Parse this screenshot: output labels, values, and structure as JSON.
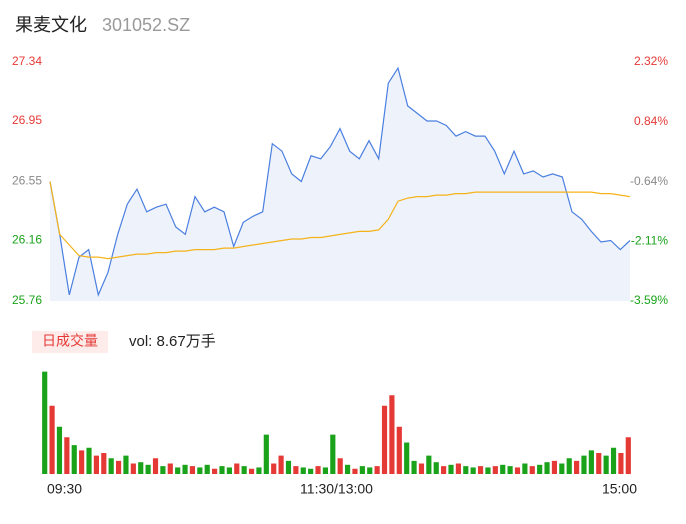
{
  "header": {
    "title": "果麦文化",
    "code": "301052.SZ"
  },
  "chart_data": [
    {
      "type": "line",
      "x": [
        0,
        4,
        8,
        12,
        16,
        20,
        24,
        28,
        32,
        36,
        40,
        44,
        48,
        52,
        56,
        60,
        64,
        68,
        72,
        76,
        80,
        84,
        88,
        92,
        96,
        100,
        104,
        108,
        112,
        116,
        120,
        124,
        128,
        132,
        136,
        140,
        144,
        148,
        152,
        156,
        160,
        164,
        168,
        172,
        176,
        180,
        184,
        188,
        192,
        196,
        200,
        204,
        208,
        212,
        216,
        220,
        224,
        228,
        232,
        236,
        240
      ],
      "xlim": [
        0,
        240
      ],
      "series": [
        {
          "name": "price",
          "color": "#4a7fe0",
          "values": [
            26.55,
            26.2,
            25.8,
            26.05,
            26.1,
            25.8,
            25.95,
            26.2,
            26.4,
            26.5,
            26.35,
            26.38,
            26.4,
            26.25,
            26.2,
            26.45,
            26.35,
            26.38,
            26.35,
            26.12,
            26.28,
            26.32,
            26.35,
            26.8,
            26.75,
            26.6,
            26.55,
            26.72,
            26.7,
            26.78,
            26.9,
            26.75,
            26.7,
            26.82,
            26.7,
            27.2,
            27.3,
            27.05,
            27.0,
            26.95,
            26.95,
            26.92,
            26.85,
            26.88,
            26.85,
            26.85,
            26.75,
            26.6,
            26.75,
            26.6,
            26.62,
            26.58,
            26.6,
            26.58,
            26.35,
            26.3,
            26.22,
            26.15,
            26.16,
            26.1,
            26.16
          ]
        },
        {
          "name": "average",
          "color": "#f5b31a",
          "values": [
            26.55,
            26.2,
            26.13,
            26.06,
            26.05,
            26.05,
            26.04,
            26.05,
            26.06,
            26.07,
            26.07,
            26.08,
            26.08,
            26.09,
            26.09,
            26.1,
            26.1,
            26.1,
            26.11,
            26.11,
            26.12,
            26.13,
            26.14,
            26.15,
            26.16,
            26.17,
            26.17,
            26.18,
            26.18,
            26.19,
            26.2,
            26.21,
            26.22,
            26.22,
            26.23,
            26.3,
            26.42,
            26.44,
            26.45,
            26.45,
            26.46,
            26.46,
            26.47,
            26.47,
            26.48,
            26.48,
            26.48,
            26.48,
            26.48,
            26.48,
            26.48,
            26.48,
            26.48,
            26.48,
            26.48,
            26.48,
            26.48,
            26.47,
            26.47,
            26.46,
            26.45
          ]
        }
      ],
      "ylim": [
        25.76,
        27.34
      ],
      "yticks": [
        25.76,
        26.16,
        26.55,
        26.95,
        27.34
      ],
      "ytick_colors": [
        "#1aa31a",
        "#1aa31a",
        "#888888",
        "#e53935",
        "#e53935"
      ],
      "y2lim": [
        -3.59,
        2.32
      ],
      "y2ticks": [
        {
          "value": -3.59,
          "label": "-3.59%"
        },
        {
          "value": -2.11,
          "label": "-2.11%"
        },
        {
          "value": -0.64,
          "label": "-0.64%"
        },
        {
          "value": 0.84,
          "label": "0.84%"
        },
        {
          "value": 2.32,
          "label": "2.32%"
        }
      ],
      "fill": "#eef2fb"
    },
    {
      "type": "bar",
      "title": "日成交量",
      "subtitle": "vol: 8.67万手",
      "values": [
        3900,
        2600,
        1800,
        1400,
        1100,
        900,
        1000,
        700,
        800,
        600,
        500,
        700,
        400,
        450,
        350,
        600,
        300,
        400,
        250,
        350,
        300,
        250,
        350,
        200,
        300,
        250,
        400,
        300,
        200,
        250,
        1500,
        400,
        700,
        500,
        300,
        250,
        200,
        300,
        250,
        1500,
        600,
        350,
        200,
        300,
        250,
        300,
        2600,
        3000,
        1800,
        1200,
        500,
        400,
        700,
        450,
        300,
        350,
        400,
        300,
        250,
        300,
        250,
        300,
        350,
        300,
        250,
        400,
        300,
        350,
        450,
        500,
        400,
        600,
        500,
        700,
        900,
        800,
        700,
        1000,
        800,
        1400
      ],
      "colors": [
        "#1aa31a",
        "#e53935",
        "#1aa31a",
        "#e53935",
        "#1aa31a",
        "#e53935",
        "#1aa31a",
        "#e53935",
        "#e53935",
        "#1aa31a",
        "#e53935",
        "#1aa31a",
        "#e53935",
        "#1aa31a",
        "#1aa31a",
        "#e53935",
        "#1aa31a",
        "#e53935",
        "#1aa31a",
        "#1aa31a",
        "#e53935",
        "#1aa31a",
        "#1aa31a",
        "#e53935",
        "#1aa31a",
        "#1aa31a",
        "#e53935",
        "#1aa31a",
        "#e53935",
        "#1aa31a",
        "#1aa31a",
        "#e53935",
        "#e53935",
        "#1aa31a",
        "#e53935",
        "#1aa31a",
        "#1aa31a",
        "#e53935",
        "#1aa31a",
        "#1aa31a",
        "#e53935",
        "#1aa31a",
        "#e53935",
        "#1aa31a",
        "#1aa31a",
        "#e53935",
        "#e53935",
        "#e53935",
        "#e53935",
        "#1aa31a",
        "#1aa31a",
        "#e53935",
        "#1aa31a",
        "#1aa31a",
        "#e53935",
        "#1aa31a",
        "#e53935",
        "#1aa31a",
        "#1aa31a",
        "#e53935",
        "#1aa31a",
        "#e53935",
        "#1aa31a",
        "#1aa31a",
        "#e53935",
        "#1aa31a",
        "#e53935",
        "#1aa31a",
        "#1aa31a",
        "#e53935",
        "#1aa31a",
        "#1aa31a",
        "#e53935",
        "#1aa31a",
        "#1aa31a",
        "#e53935",
        "#1aa31a",
        "#1aa31a",
        "#e53935",
        "#e53935"
      ],
      "ylim": [
        0,
        4000
      ],
      "xlim": [
        0,
        240
      ],
      "xticks": [
        {
          "value": 0,
          "label": "09:30"
        },
        {
          "value": 120,
          "label": "11:30/13:00"
        },
        {
          "value": 240,
          "label": "15:00"
        }
      ]
    }
  ]
}
